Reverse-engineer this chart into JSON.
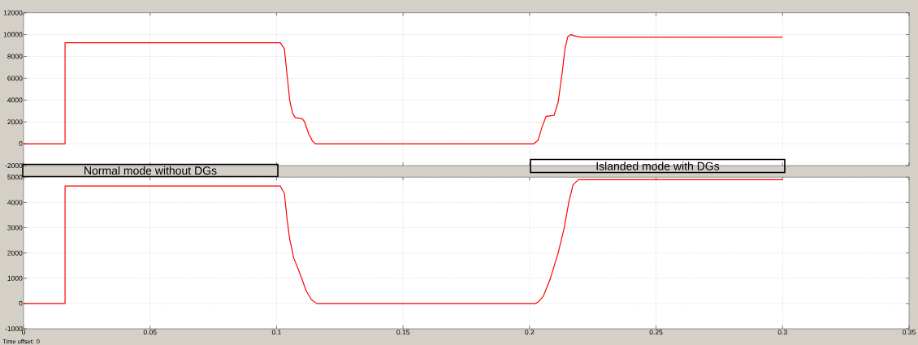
{
  "chart_data": [
    {
      "type": "line",
      "x": [
        0,
        0.0164,
        0.0164,
        0.1015,
        0.1031,
        0.1042,
        0.1052,
        0.1063,
        0.1074,
        0.1101,
        0.1111,
        0.1127,
        0.1143,
        0.1154,
        0.2017,
        0.2033,
        0.2049,
        0.2065,
        0.2097,
        0.2113,
        0.2129,
        0.214,
        0.2151,
        0.2164,
        0.2183,
        0.2204,
        0.3
      ],
      "values": [
        0,
        0,
        9250,
        9250,
        8700,
        6200,
        4000,
        2800,
        2400,
        2300,
        2000,
        900,
        200,
        0,
        0,
        300,
        1500,
        2500,
        2600,
        3800,
        6500,
        8700,
        9800,
        10000,
        9850,
        9750,
        9750
      ],
      "color": "#ff0000",
      "xlim": [
        0,
        0.35
      ],
      "xticks": [
        0,
        0.05,
        0.1,
        0.15,
        0.2,
        0.25,
        0.3,
        0.35
      ],
      "ylim": [
        -2000,
        12000
      ],
      "yticks": [
        -2000,
        0,
        2000,
        4000,
        6000,
        8000,
        10000,
        12000
      ],
      "grid": true,
      "tick_labels": "y",
      "annotations": [
        "Normal mode without DGs",
        "Islanded mode with DGs"
      ]
    },
    {
      "type": "line",
      "x": [
        0,
        0.0164,
        0.0164,
        0.1015,
        0.1031,
        0.1042,
        0.1052,
        0.1068,
        0.1084,
        0.1101,
        0.1117,
        0.1138,
        0.1159,
        0.2023,
        0.2033,
        0.2055,
        0.2081,
        0.2113,
        0.2135,
        0.2156,
        0.2172,
        0.2193,
        0.3
      ],
      "values": [
        0,
        0,
        4650,
        4650,
        4350,
        3300,
        2550,
        1800,
        1400,
        950,
        500,
        150,
        0,
        0,
        50,
        300,
        950,
        2000,
        2900,
        4050,
        4700,
        4900,
        4900
      ],
      "color": "#ff0000",
      "xlim": [
        0,
        0.35
      ],
      "xticks": [
        0,
        0.05,
        0.1,
        0.15,
        0.2,
        0.25,
        0.3,
        0.35
      ],
      "ylim": [
        -1000,
        5000
      ],
      "yticks": [
        -1000,
        0,
        1000,
        2000,
        3000,
        4000,
        5000
      ],
      "grid": true,
      "annotations": [
        "Time offset:  0"
      ]
    }
  ]
}
